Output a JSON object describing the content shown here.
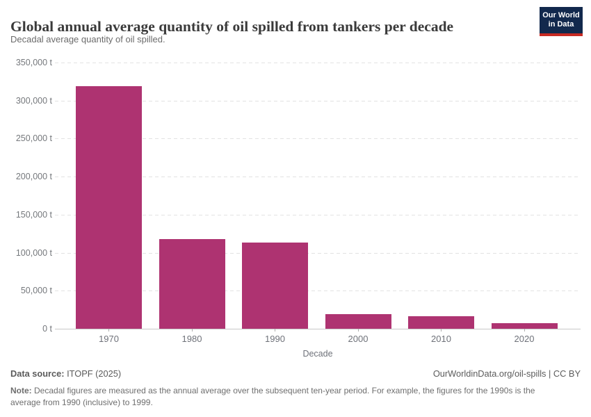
{
  "header": {
    "title": "Global annual average quantity of oil spilled from tankers per decade",
    "subtitle": "Decadal average quantity of oil spilled.",
    "logo": {
      "line1": "Our World",
      "line2": "in Data"
    }
  },
  "chart_data": {
    "type": "bar",
    "title": "Global annual average quantity of oil spilled from tankers per decade",
    "categories": [
      "1970",
      "1980",
      "1990",
      "2000",
      "2010",
      "2020"
    ],
    "values": [
      319000,
      117800,
      113400,
      19600,
      16400,
      7500
    ],
    "xlabel": "Decade",
    "ylabel": "",
    "ylim": [
      0,
      350000
    ],
    "ytick_step": 50000,
    "ytick_suffix": " t",
    "ytick_labels": [
      "0 t",
      "50,000 t",
      "100,000 t",
      "150,000 t",
      "200,000 t",
      "250,000 t",
      "300,000 t",
      "350,000 t"
    ],
    "grid": "horizontal-dashed",
    "legend": "none",
    "bar_color": "#ae3371"
  },
  "colors": {
    "bar": "#ae3371",
    "logo_bg": "#12294d",
    "logo_accent": "#c72a23",
    "title_text": "#3a3a3a",
    "muted_text": "#6e6e6e",
    "gridline": "#e2e2e2",
    "axis_line": "#c8c8c8"
  },
  "footer": {
    "source_label": "Data source:",
    "source_value": "ITOPF (2025)",
    "attribution": "OurWorldinData.org/oil-spills | CC BY",
    "note_label": "Note:",
    "note_text": "Decadal figures are measured as the annual average over the subsequent ten-year period. For example, the figures for the 1990s is the average from 1990 (inclusive) to 1999."
  }
}
